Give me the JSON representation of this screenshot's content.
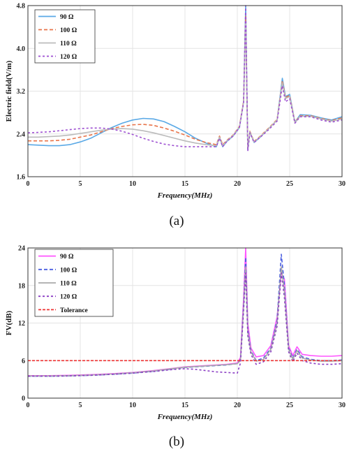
{
  "chart_data": [
    {
      "type": "line",
      "caption": "(a)",
      "xlabel": "Frequency(MHz)",
      "ylabel": "Electric field(V/m)",
      "xlim": [
        0,
        30
      ],
      "ylim": [
        1.6,
        4.8
      ],
      "xticks": [
        "0",
        "5",
        "10",
        "15",
        "20",
        "25",
        "30"
      ],
      "yticks": [
        "1.6",
        "2.4",
        "3.2",
        "4.0",
        "4.8"
      ],
      "ytick_values": [
        1.6,
        2.4,
        3.2,
        4.0,
        4.8
      ],
      "grid": true,
      "legend": "top-left",
      "x": [
        0,
        1,
        2,
        3,
        4,
        5,
        6,
        7,
        8,
        9,
        10,
        11,
        12,
        13,
        14,
        15,
        16,
        17,
        18,
        18.3,
        18.6,
        19,
        19.6,
        20.2,
        20.6,
        20.8,
        21,
        21.2,
        21.6,
        22.2,
        23,
        23.8,
        24.3,
        24.6,
        25,
        25.5,
        26,
        27,
        28,
        29,
        30
      ],
      "series": [
        {
          "name": "90 Ω",
          "color": "#5aa9e6",
          "dash": "",
          "y": [
            2.2,
            2.19,
            2.18,
            2.18,
            2.2,
            2.25,
            2.32,
            2.42,
            2.52,
            2.6,
            2.66,
            2.69,
            2.68,
            2.63,
            2.54,
            2.44,
            2.32,
            2.23,
            2.16,
            2.34,
            2.16,
            2.26,
            2.36,
            2.52,
            3.0,
            4.8,
            2.1,
            2.44,
            2.24,
            2.34,
            2.5,
            2.66,
            3.44,
            3.1,
            3.14,
            2.62,
            2.76,
            2.75,
            2.7,
            2.66,
            2.72
          ]
        },
        {
          "name": "100 Ω",
          "color": "#e8744a",
          "dash": "5,3",
          "y": [
            2.27,
            2.27,
            2.27,
            2.28,
            2.3,
            2.34,
            2.38,
            2.44,
            2.5,
            2.54,
            2.57,
            2.58,
            2.56,
            2.51,
            2.45,
            2.38,
            2.3,
            2.24,
            2.2,
            2.36,
            2.2,
            2.28,
            2.38,
            2.54,
            3.02,
            4.6,
            2.12,
            2.45,
            2.26,
            2.36,
            2.51,
            2.67,
            3.4,
            3.08,
            3.12,
            2.62,
            2.74,
            2.74,
            2.69,
            2.65,
            2.7
          ]
        },
        {
          "name": "110 Ω",
          "color": "#bbbbbb",
          "dash": "",
          "y": [
            2.34,
            2.34,
            2.35,
            2.36,
            2.38,
            2.41,
            2.44,
            2.47,
            2.49,
            2.5,
            2.49,
            2.46,
            2.42,
            2.37,
            2.32,
            2.27,
            2.23,
            2.2,
            2.18,
            2.34,
            2.18,
            2.27,
            2.37,
            2.53,
            3.0,
            4.5,
            2.11,
            2.44,
            2.25,
            2.35,
            2.5,
            2.66,
            3.36,
            3.06,
            3.1,
            2.61,
            2.73,
            2.73,
            2.68,
            2.64,
            2.68
          ]
        },
        {
          "name": "120 Ω",
          "color": "#9d4fd1",
          "dash": "3,3",
          "y": [
            2.42,
            2.43,
            2.44,
            2.46,
            2.48,
            2.5,
            2.51,
            2.51,
            2.49,
            2.45,
            2.39,
            2.32,
            2.26,
            2.21,
            2.18,
            2.16,
            2.16,
            2.16,
            2.16,
            2.32,
            2.16,
            2.26,
            2.36,
            2.52,
            2.98,
            4.8,
            2.08,
            2.42,
            2.24,
            2.34,
            2.48,
            2.64,
            3.3,
            3.0,
            3.06,
            2.6,
            2.72,
            2.72,
            2.66,
            2.62,
            2.66
          ]
        }
      ]
    },
    {
      "type": "line",
      "caption": "(b)",
      "xlabel": "Frequency(MHz)",
      "ylabel": "FV(dB)",
      "xlim": [
        0,
        30
      ],
      "ylim": [
        0,
        24
      ],
      "xticks": [
        "0",
        "5",
        "10",
        "15",
        "20",
        "25",
        "30"
      ],
      "yticks": [
        "0",
        "6",
        "12",
        "18",
        "24"
      ],
      "ytick_values": [
        0,
        6,
        12,
        18,
        24
      ],
      "grid": true,
      "legend": "top-left",
      "x": [
        0,
        2,
        4,
        6,
        8,
        10,
        12,
        14,
        15,
        16,
        17,
        18,
        19,
        20,
        20.3,
        20.6,
        20.8,
        21,
        21.3,
        21.8,
        22.5,
        23.2,
        23.8,
        24.2,
        24.5,
        24.9,
        25.3,
        25.7,
        26.2,
        27,
        28,
        29,
        30
      ],
      "series": [
        {
          "name": "90 Ω",
          "color": "#ff55ff",
          "dash": "",
          "y": [
            3.6,
            3.6,
            3.65,
            3.75,
            3.9,
            4.1,
            4.4,
            4.8,
            5.0,
            5.1,
            5.2,
            5.3,
            5.4,
            5.6,
            6.5,
            16,
            24,
            12,
            8,
            6.6,
            6.8,
            8.4,
            13,
            20,
            19,
            8.4,
            6.8,
            8.2,
            7.0,
            6.8,
            6.7,
            6.7,
            6.8
          ]
        },
        {
          "name": "100 Ω",
          "color": "#4a5ee0",
          "dash": "5,3",
          "y": [
            3.5,
            3.5,
            3.55,
            3.65,
            3.8,
            4.0,
            4.3,
            4.7,
            4.9,
            5.0,
            5.1,
            5.2,
            5.3,
            5.5,
            6.2,
            15,
            22.5,
            11,
            7.6,
            6.0,
            6.4,
            8.0,
            12.5,
            23,
            18,
            8.0,
            6.4,
            7.8,
            6.6,
            6.2,
            6.0,
            6.0,
            6.1
          ]
        },
        {
          "name": "110 Ω",
          "color": "#aaaaaa",
          "dash": "",
          "y": [
            3.55,
            3.55,
            3.6,
            3.7,
            3.85,
            4.05,
            4.35,
            4.75,
            4.95,
            5.05,
            5.15,
            5.25,
            5.35,
            5.5,
            6.0,
            14.5,
            21,
            10.5,
            7.4,
            5.9,
            6.2,
            7.8,
            12,
            21,
            17,
            7.8,
            6.2,
            7.6,
            6.4,
            6.1,
            5.9,
            5.9,
            6.0
          ]
        },
        {
          "name": "120 Ω",
          "color": "#8b3fc4",
          "dash": "3,3",
          "y": [
            3.5,
            3.5,
            3.55,
            3.65,
            3.8,
            4.0,
            4.25,
            4.6,
            4.7,
            4.6,
            4.4,
            4.2,
            4.1,
            4.0,
            5.6,
            14,
            20,
            10,
            7.0,
            5.4,
            5.8,
            7.4,
            11.5,
            20,
            16,
            7.4,
            5.8,
            7.2,
            6.0,
            5.6,
            5.4,
            5.4,
            5.5
          ]
        },
        {
          "name": "Tolerance",
          "color": "#ee3333",
          "dash": "4,2",
          "y": [
            6,
            6,
            6,
            6,
            6,
            6,
            6,
            6,
            6,
            6,
            6,
            6,
            6,
            6,
            6,
            6,
            6,
            6,
            6,
            6,
            6,
            6,
            6,
            6,
            6,
            6,
            6,
            6,
            6,
            6,
            6,
            6,
            6
          ]
        }
      ]
    }
  ]
}
